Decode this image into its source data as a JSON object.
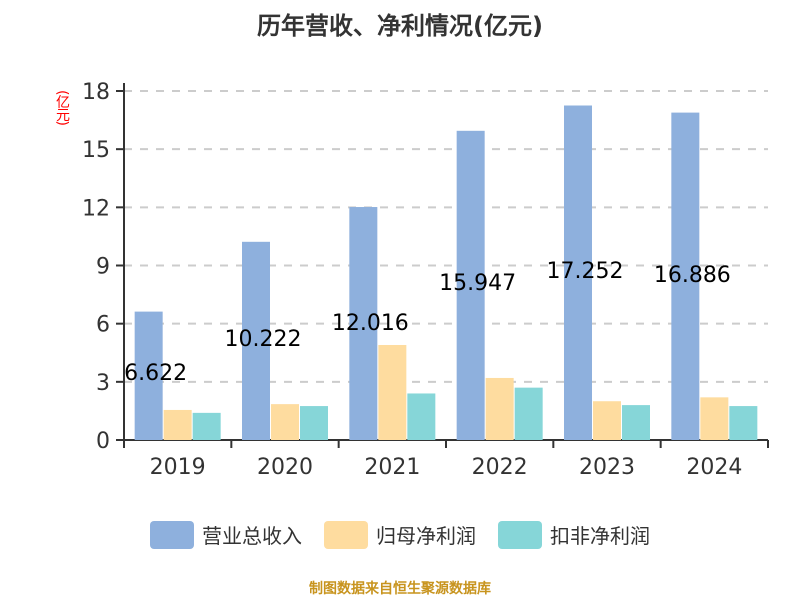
{
  "title": "历年营收、净利情况(亿元)",
  "unit_label": "(亿元)",
  "source": "制图数据来自恒生聚源数据库",
  "colors": {
    "revenue": "#8eb0dd",
    "parent_net_profit": "#fedc9f",
    "deducted_net_profit": "#86d6d8",
    "grid": "#cccccc",
    "axis": "#333333",
    "unit": "#ff0000",
    "source": "#c8941e"
  },
  "legend": [
    {
      "label": "营业总收入",
      "key": "revenue"
    },
    {
      "label": "归母净利润",
      "key": "parent_net_profit"
    },
    {
      "label": "扣非净利润",
      "key": "deducted_net_profit"
    }
  ],
  "chart_data": {
    "type": "bar",
    "title": "历年营收、净利情况(亿元)",
    "xlabel": "",
    "ylabel": "(亿元)",
    "ylim": [
      0,
      18
    ],
    "yticks": [
      0,
      3,
      6,
      9,
      12,
      15,
      18
    ],
    "grid": true,
    "legend_position": "bottom",
    "categories": [
      "2019",
      "2020",
      "2021",
      "2022",
      "2023",
      "2024"
    ],
    "series": [
      {
        "name": "营业总收入",
        "values": [
          6.622,
          10.222,
          12.016,
          15.947,
          17.252,
          16.886
        ]
      },
      {
        "name": "归母净利润",
        "values": [
          1.55,
          1.85,
          4.9,
          3.2,
          2.0,
          2.2
        ]
      },
      {
        "name": "扣非净利润",
        "values": [
          1.4,
          1.75,
          2.4,
          2.7,
          1.8,
          1.75
        ]
      }
    ],
    "data_labels": [
      "6.622",
      "10.222",
      "12.016",
      "15.947",
      "17.252",
      "16.886"
    ],
    "annotation_note": "Data labels shown only for 营业总收入"
  }
}
